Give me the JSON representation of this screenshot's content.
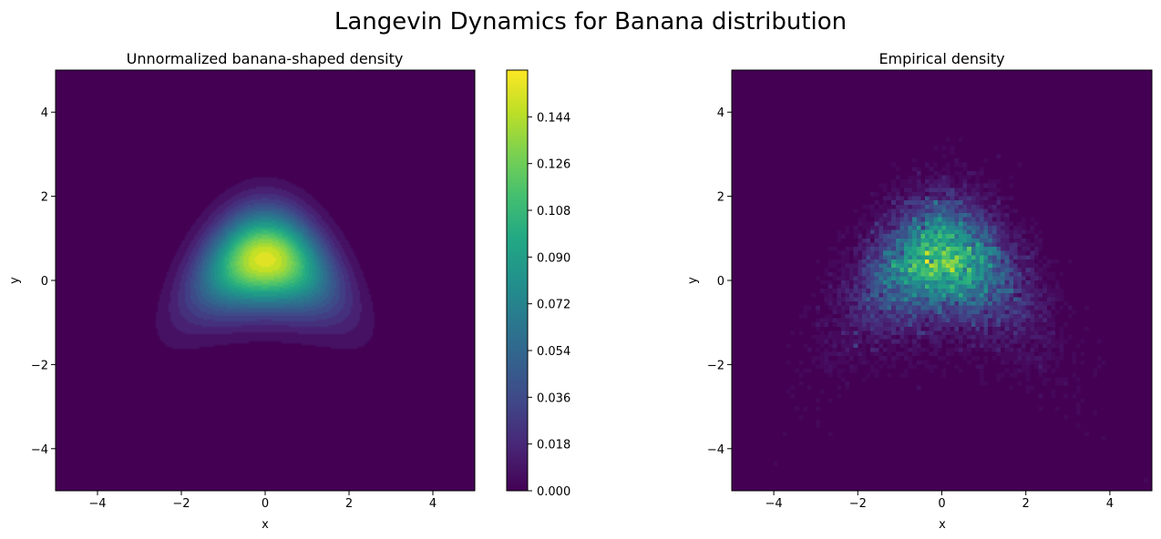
{
  "figure": {
    "suptitle": "Langevin Dynamics for Banana distribution"
  },
  "chart_data": [
    {
      "type": "heatmap",
      "subtype": "filled-contour",
      "title": "Unnormalized banana-shaped density",
      "xlabel": "x",
      "ylabel": "y",
      "xlim": [
        -5,
        5
      ],
      "ylim": [
        -5,
        5
      ],
      "xticks": [
        -4,
        -2,
        0,
        2,
        4
      ],
      "yticks": [
        -4,
        -2,
        0,
        2,
        4
      ],
      "xtick_labels": [
        "−4",
        "−2",
        "0",
        "2",
        "4"
      ],
      "ytick_labels": [
        "−4",
        "−2",
        "0",
        "2",
        "4"
      ],
      "colormap": "viridis",
      "peak": {
        "x": 0,
        "y": 0.5,
        "value": 0.159
      },
      "colorbar": {
        "ticks": [
          0.0,
          0.018,
          0.036,
          0.054,
          0.072,
          0.09,
          0.108,
          0.126,
          0.144
        ],
        "tick_labels": [
          "0.000",
          "0.018",
          "0.036",
          "0.054",
          "0.072",
          "0.090",
          "0.108",
          "0.126",
          "0.144"
        ],
        "range": [
          0,
          0.162
        ]
      },
      "grid": false
    },
    {
      "type": "heatmap",
      "subtype": "2d-histogram",
      "title": "Empirical density",
      "xlabel": "x",
      "ylabel": "y",
      "xlim": [
        -5,
        5
      ],
      "ylim": [
        -5,
        5
      ],
      "xticks": [
        -4,
        -2,
        0,
        2,
        4
      ],
      "yticks": [
        -4,
        -2,
        0,
        2,
        4
      ],
      "xtick_labels": [
        "−4",
        "−2",
        "0",
        "2",
        "4"
      ],
      "ytick_labels": [
        "−4",
        "−2",
        "0",
        "2",
        "4"
      ],
      "colormap": "viridis",
      "bins": 100,
      "grid": false
    }
  ]
}
